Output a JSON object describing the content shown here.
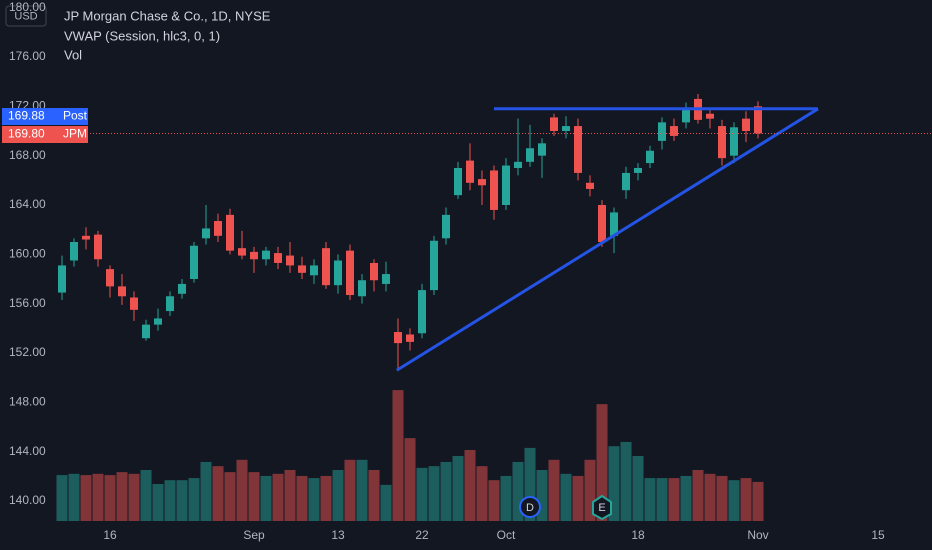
{
  "chart_data": {
    "type": "candlestick",
    "currency": "USD",
    "title": "JP Morgan Chase & Co., 1D, NYSE",
    "indicators": [
      "VWAP (Session, hlc3, 0, 1)",
      "Vol"
    ],
    "up_color": "#26a69a",
    "down_color": "#ef5350",
    "open": [
      156.9,
      159.5,
      161.5,
      161.6,
      158.8,
      157.4,
      156.5,
      153.2,
      154.3,
      155.4,
      156.8,
      158.0,
      161.3,
      162.7,
      163.2,
      160.5,
      160.2,
      159.6,
      160.1,
      159.9,
      159.1,
      158.3,
      160.5,
      157.5,
      160.3,
      156.6,
      159.3,
      157.6,
      153.7,
      153.5,
      153.6,
      157.1,
      161.3,
      164.8,
      167.6,
      166.1,
      166.8,
      164.0,
      167.0,
      167.5,
      168.0,
      171.1,
      170.0,
      170.4,
      165.8,
      164.0,
      161.5,
      165.2,
      166.6,
      167.4,
      169.2,
      170.4,
      170.7,
      172.6,
      171.4,
      170.4,
      168.0,
      171.0,
      172.0
    ],
    "high": [
      159.9,
      161.3,
      162.2,
      161.9,
      159.1,
      158.4,
      157.0,
      154.7,
      155.6,
      157.0,
      158.0,
      161.0,
      164.0,
      163.3,
      163.7,
      161.9,
      160.6,
      160.6,
      160.6,
      161.0,
      159.8,
      159.6,
      161.0,
      160.0,
      160.8,
      158.4,
      159.6,
      159.4,
      154.8,
      154.0,
      157.6,
      161.5,
      163.8,
      167.5,
      169.0,
      166.8,
      167.2,
      167.8,
      171.0,
      170.5,
      169.4,
      171.4,
      171.2,
      171.0,
      166.4,
      164.4,
      163.8,
      167.1,
      167.4,
      168.8,
      171.1,
      171.0,
      172.3,
      173.0,
      171.9,
      170.9,
      170.7,
      171.6,
      172.4
    ],
    "low": [
      156.3,
      159.0,
      160.4,
      159.0,
      156.5,
      155.9,
      154.6,
      153.0,
      153.8,
      155.0,
      156.4,
      157.7,
      160.8,
      161.0,
      160.0,
      159.6,
      158.5,
      159.1,
      158.8,
      158.5,
      158.0,
      157.6,
      157.2,
      156.8,
      156.3,
      156.0,
      157.0,
      157.0,
      150.6,
      152.2,
      153.2,
      156.7,
      160.8,
      164.5,
      165.2,
      164.0,
      162.8,
      163.6,
      166.4,
      167.1,
      166.2,
      169.6,
      169.4,
      166.0,
      164.7,
      160.6,
      160.1,
      164.5,
      166.0,
      167.0,
      168.5,
      169.2,
      170.2,
      170.6,
      170.2,
      167.2,
      167.4,
      169.1,
      169.4
    ],
    "close": [
      159.1,
      161.0,
      161.2,
      159.6,
      157.4,
      156.6,
      155.5,
      154.3,
      154.8,
      156.6,
      157.6,
      160.7,
      162.1,
      161.5,
      160.3,
      159.9,
      159.6,
      160.3,
      159.3,
      159.1,
      158.5,
      159.1,
      157.5,
      159.5,
      156.7,
      157.9,
      157.9,
      158.4,
      152.8,
      152.9,
      157.1,
      161.1,
      163.2,
      167.0,
      165.8,
      165.6,
      163.6,
      167.2,
      167.5,
      168.6,
      169.0,
      170.0,
      170.4,
      166.6,
      165.3,
      161.0,
      163.4,
      166.6,
      167.0,
      168.4,
      170.7,
      169.6,
      171.7,
      170.9,
      171.0,
      167.8,
      170.3,
      170.0,
      169.8
    ],
    "volume": [
      10.8,
      11.1,
      10.8,
      11.1,
      10.8,
      11.5,
      11.1,
      12.0,
      8.7,
      9.6,
      9.6,
      10.1,
      13.9,
      12.9,
      11.5,
      14.4,
      11.5,
      10.6,
      11.1,
      12.0,
      10.6,
      10.1,
      10.6,
      12.0,
      14.4,
      14.4,
      12.0,
      8.5,
      30.8,
      19.5,
      12.5,
      12.9,
      13.9,
      15.3,
      16.7,
      12.9,
      9.6,
      10.6,
      13.9,
      17.2,
      12.0,
      14.4,
      11.1,
      10.6,
      14.4,
      27.5,
      17.6,
      18.6,
      15.3,
      10.1,
      10.1,
      10.1,
      10.6,
      12.0,
      11.1,
      10.6,
      9.6,
      10.1,
      9.2
    ],
    "xlim": [
      -1,
      72.5
    ],
    "ylim": [
      140,
      180
    ],
    "volume_lim": [
      0,
      40
    ],
    "yticks": [
      {
        "value": 140,
        "label": "140.00"
      },
      {
        "value": 144,
        "label": "144.00"
      },
      {
        "value": 148,
        "label": "148.00"
      },
      {
        "value": 152,
        "label": "152.00"
      },
      {
        "value": 156,
        "label": "156.00"
      },
      {
        "value": 160,
        "label": "160.00"
      },
      {
        "value": 164,
        "label": "164.00"
      },
      {
        "value": 168,
        "label": "168.00"
      },
      {
        "value": 172,
        "label": "172.00"
      },
      {
        "value": 176,
        "label": "176.00"
      },
      {
        "value": 180,
        "label": "180.00"
      }
    ],
    "xticks": [
      {
        "value": 4,
        "label": "16"
      },
      {
        "value": 16,
        "label": "Sep"
      },
      {
        "value": 23,
        "label": "13"
      },
      {
        "value": 30,
        "label": "22"
      },
      {
        "value": 37,
        "label": "Oct"
      },
      {
        "value": 48,
        "label": "18"
      },
      {
        "value": 58,
        "label": "Nov"
      },
      {
        "value": 68,
        "label": "15"
      }
    ],
    "trendlines": [
      {
        "color": "#2454e6",
        "x": [
          36,
          63
        ],
        "y": [
          171.8,
          171.8
        ]
      },
      {
        "color": "#2454e6",
        "x": [
          27.9,
          63
        ],
        "y": [
          150.6,
          171.8
        ]
      }
    ],
    "price_labels": [
      {
        "value": 169.88,
        "text": "Post",
        "color": "#2962ff"
      },
      {
        "value": {
          "value": 169.8,
          "label": "169.80"
        },
        "text": "JPM",
        "color": "#ef5350"
      }
    ],
    "events": [
      {
        "x": 39,
        "label": "D"
      },
      {
        "x": 45,
        "label": "E"
      }
    ]
  }
}
